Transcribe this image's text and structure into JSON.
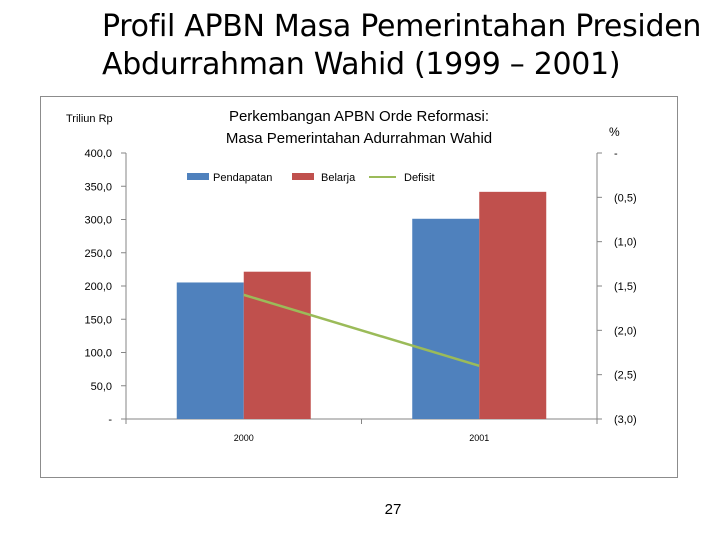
{
  "slide": {
    "title_line1": "Profil APBN Masa Pemerintahan Presiden",
    "title_line2": "Abdurrahman Wahid (1999 – 2001)",
    "page_number": "27"
  },
  "chart_data": {
    "type": "bar",
    "title_line1": "Perkembangan APBN Orde Reformasi:",
    "title_line2": "Masa Pemerintahan Adurrahman Wahid",
    "left_axis_unit": "Triliun Rp",
    "right_axis_unit": "%",
    "categories": [
      "2000",
      "2001"
    ],
    "ylim": [
      0,
      400
    ],
    "y_ticks": [
      0,
      50,
      100,
      150,
      200,
      250,
      300,
      350,
      400
    ],
    "y_tick_labels": [
      "-",
      "50,0",
      "100,0",
      "150,0",
      "200,0",
      "250,0",
      "300,0",
      "350,0",
      "400,0"
    ],
    "y2lim": [
      -3.0,
      0
    ],
    "y2_ticks": [
      0,
      -0.5,
      -1.0,
      -1.5,
      -2.0,
      -2.5,
      -3.0
    ],
    "y2_tick_labels": [
      "-",
      "(0,5)",
      "(1,0)",
      "(1,5)",
      "(2,0)",
      "(2,5)",
      "(3,0)"
    ],
    "series": [
      {
        "name": "Pendapatan",
        "type": "bar",
        "axis": "left",
        "color": "#4f81bd",
        "values": [
          205.3,
          301.1
        ]
      },
      {
        "name": "Belarja",
        "type": "bar",
        "axis": "left",
        "color": "#c0504d",
        "values": [
          221.5,
          341.6
        ]
      },
      {
        "name": "Defisit",
        "type": "line",
        "axis": "right",
        "color": "#9bbb59",
        "values": [
          -1.6,
          -2.4
        ]
      }
    ],
    "legend_position": "top",
    "grid": false
  }
}
